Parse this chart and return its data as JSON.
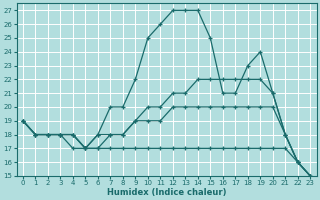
{
  "xlabel": "Humidex (Indice chaleur)",
  "xlim": [
    -0.5,
    23.5
  ],
  "ylim": [
    15,
    27.5
  ],
  "yticks": [
    15,
    16,
    17,
    18,
    19,
    20,
    21,
    22,
    23,
    24,
    25,
    26,
    27
  ],
  "xticks": [
    0,
    1,
    2,
    3,
    4,
    5,
    6,
    7,
    8,
    9,
    10,
    11,
    12,
    13,
    14,
    15,
    16,
    17,
    18,
    19,
    20,
    21,
    22,
    23
  ],
  "bg_color": "#b2dede",
  "grid_color": "#ffffff",
  "line_color": "#1a6b6b",
  "lines": [
    {
      "x": [
        0,
        1,
        2,
        3,
        4,
        5,
        6,
        7,
        8,
        9,
        10,
        11,
        12,
        13,
        14,
        15,
        16,
        17,
        18,
        19,
        20,
        21,
        22,
        23
      ],
      "y": [
        19,
        18,
        18,
        18,
        18,
        17,
        18,
        20,
        20,
        22,
        25,
        26,
        27,
        27,
        27,
        25,
        21,
        21,
        23,
        24,
        21,
        18,
        16,
        15
      ]
    },
    {
      "x": [
        0,
        1,
        2,
        3,
        4,
        5,
        6,
        7,
        8,
        9,
        10,
        11,
        12,
        13,
        14,
        15,
        16,
        17,
        18,
        19,
        20,
        21,
        22,
        23
      ],
      "y": [
        19,
        18,
        18,
        18,
        18,
        17,
        18,
        18,
        18,
        19,
        19,
        19,
        20,
        20,
        20,
        20,
        20,
        20,
        20,
        20,
        20,
        18,
        16,
        15
      ]
    },
    {
      "x": [
        0,
        1,
        2,
        3,
        4,
        5,
        6,
        7,
        8,
        9,
        10,
        11,
        12,
        13,
        14,
        15,
        16,
        17,
        18,
        19,
        20,
        21,
        22,
        23
      ],
      "y": [
        19,
        18,
        18,
        18,
        18,
        17,
        17,
        18,
        18,
        19,
        20,
        20,
        21,
        21,
        22,
        22,
        22,
        22,
        22,
        22,
        21,
        18,
        16,
        15
      ]
    },
    {
      "x": [
        0,
        1,
        2,
        3,
        4,
        5,
        6,
        7,
        8,
        9,
        10,
        11,
        12,
        13,
        14,
        15,
        16,
        17,
        18,
        19,
        20,
        21,
        22,
        23
      ],
      "y": [
        19,
        18,
        18,
        18,
        17,
        17,
        17,
        17,
        17,
        17,
        17,
        17,
        17,
        17,
        17,
        17,
        17,
        17,
        17,
        17,
        17,
        17,
        16,
        15
      ]
    }
  ]
}
